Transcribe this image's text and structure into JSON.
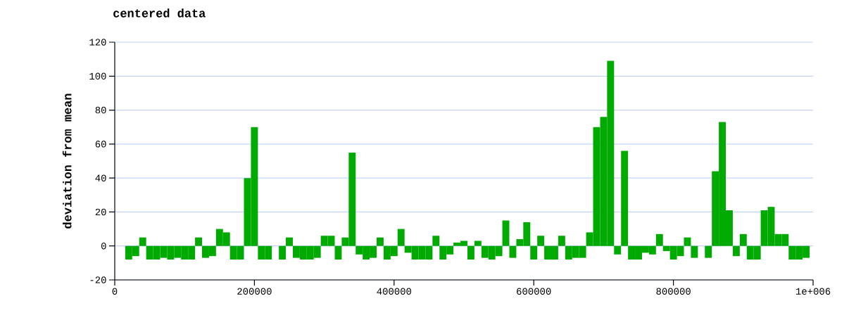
{
  "chart_data": {
    "type": "bar",
    "title": "centered data",
    "ylabel": "deviation from mean",
    "color": "#00aa00",
    "grid": "y",
    "x": [
      20000,
      30000,
      40000,
      50000,
      60000,
      70000,
      80000,
      90000,
      100000,
      110000,
      120000,
      130000,
      140000,
      150000,
      160000,
      170000,
      180000,
      190000,
      200000,
      210000,
      220000,
      230000,
      240000,
      250000,
      260000,
      270000,
      280000,
      290000,
      300000,
      310000,
      320000,
      330000,
      340000,
      350000,
      360000,
      370000,
      380000,
      390000,
      400000,
      410000,
      420000,
      430000,
      440000,
      450000,
      460000,
      470000,
      480000,
      490000,
      500000,
      510000,
      520000,
      530000,
      540000,
      550000,
      560000,
      570000,
      580000,
      590000,
      600000,
      610000,
      620000,
      630000,
      640000,
      650000,
      660000,
      670000,
      680000,
      690000,
      700000,
      710000,
      720000,
      730000,
      740000,
      750000,
      760000,
      770000,
      780000,
      790000,
      800000,
      810000,
      820000,
      830000,
      840000,
      850000,
      860000,
      870000,
      880000,
      890000,
      900000,
      910000,
      920000,
      930000,
      940000,
      950000,
      960000,
      970000,
      980000,
      990000
    ],
    "values": [
      -8,
      -6,
      5,
      -8,
      -8,
      -7,
      -8,
      -7,
      -8,
      -8,
      5,
      -7,
      -6,
      10,
      8,
      -8,
      -8,
      40,
      70,
      -8,
      -8,
      null,
      -8,
      5,
      -7,
      -8,
      -8,
      -7,
      6,
      6,
      -8,
      5,
      55,
      -5,
      -8,
      -7,
      5,
      -8,
      -6,
      10,
      -4,
      -8,
      -8,
      -8,
      6,
      -8,
      -5,
      2,
      3,
      -8,
      3,
      -7,
      -8,
      -6,
      15,
      -7,
      4,
      14,
      -8,
      6,
      -8,
      -8,
      6,
      -8,
      -7,
      -7,
      8,
      70,
      76,
      109,
      -5,
      56,
      -8,
      -8,
      -4,
      -5,
      7,
      -3,
      -8,
      -6,
      5,
      -7,
      null,
      -7,
      44,
      73,
      21,
      -6,
      7,
      -8,
      -8,
      21,
      23,
      7,
      7,
      -8,
      -8,
      -7
    ],
    "xlim": [
      0,
      1000000
    ],
    "xticks": [
      0,
      200000,
      400000,
      600000,
      800000,
      {
        "value": 1000000,
        "label": "1e+006"
      }
    ],
    "ylim": [
      -20,
      120
    ],
    "yticks": [
      -20,
      0,
      20,
      40,
      60,
      80,
      100,
      120
    ]
  }
}
